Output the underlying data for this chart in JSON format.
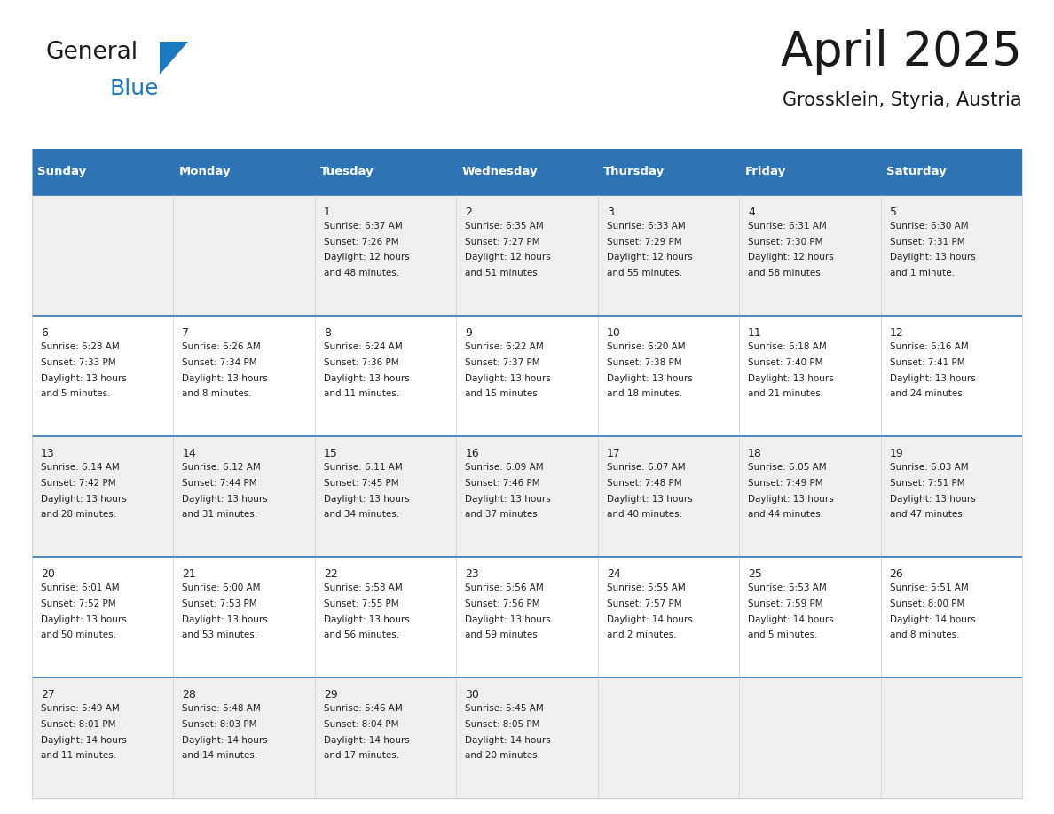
{
  "title": "April 2025",
  "subtitle": "Grossklein, Styria, Austria",
  "header_color": "#2E74B5",
  "header_text_color": "#FFFFFF",
  "cell_bg_even": "#EFEFEF",
  "cell_bg_odd": "#FFFFFF",
  "cell_text_color": "#222222",
  "separator_color": "#2E74B5",
  "days_of_week": [
    "Sunday",
    "Monday",
    "Tuesday",
    "Wednesday",
    "Thursday",
    "Friday",
    "Saturday"
  ],
  "weeks": [
    [
      {
        "day": "",
        "sunrise": "",
        "sunset": "",
        "daylight": ""
      },
      {
        "day": "",
        "sunrise": "",
        "sunset": "",
        "daylight": ""
      },
      {
        "day": "1",
        "sunrise": "6:37 AM",
        "sunset": "7:26 PM",
        "daylight_line1": "Daylight: 12 hours",
        "daylight_line2": "and 48 minutes."
      },
      {
        "day": "2",
        "sunrise": "6:35 AM",
        "sunset": "7:27 PM",
        "daylight_line1": "Daylight: 12 hours",
        "daylight_line2": "and 51 minutes."
      },
      {
        "day": "3",
        "sunrise": "6:33 AM",
        "sunset": "7:29 PM",
        "daylight_line1": "Daylight: 12 hours",
        "daylight_line2": "and 55 minutes."
      },
      {
        "day": "4",
        "sunrise": "6:31 AM",
        "sunset": "7:30 PM",
        "daylight_line1": "Daylight: 12 hours",
        "daylight_line2": "and 58 minutes."
      },
      {
        "day": "5",
        "sunrise": "6:30 AM",
        "sunset": "7:31 PM",
        "daylight_line1": "Daylight: 13 hours",
        "daylight_line2": "and 1 minute."
      }
    ],
    [
      {
        "day": "6",
        "sunrise": "6:28 AM",
        "sunset": "7:33 PM",
        "daylight_line1": "Daylight: 13 hours",
        "daylight_line2": "and 5 minutes."
      },
      {
        "day": "7",
        "sunrise": "6:26 AM",
        "sunset": "7:34 PM",
        "daylight_line1": "Daylight: 13 hours",
        "daylight_line2": "and 8 minutes."
      },
      {
        "day": "8",
        "sunrise": "6:24 AM",
        "sunset": "7:36 PM",
        "daylight_line1": "Daylight: 13 hours",
        "daylight_line2": "and 11 minutes."
      },
      {
        "day": "9",
        "sunrise": "6:22 AM",
        "sunset": "7:37 PM",
        "daylight_line1": "Daylight: 13 hours",
        "daylight_line2": "and 15 minutes."
      },
      {
        "day": "10",
        "sunrise": "6:20 AM",
        "sunset": "7:38 PM",
        "daylight_line1": "Daylight: 13 hours",
        "daylight_line2": "and 18 minutes."
      },
      {
        "day": "11",
        "sunrise": "6:18 AM",
        "sunset": "7:40 PM",
        "daylight_line1": "Daylight: 13 hours",
        "daylight_line2": "and 21 minutes."
      },
      {
        "day": "12",
        "sunrise": "6:16 AM",
        "sunset": "7:41 PM",
        "daylight_line1": "Daylight: 13 hours",
        "daylight_line2": "and 24 minutes."
      }
    ],
    [
      {
        "day": "13",
        "sunrise": "6:14 AM",
        "sunset": "7:42 PM",
        "daylight_line1": "Daylight: 13 hours",
        "daylight_line2": "and 28 minutes."
      },
      {
        "day": "14",
        "sunrise": "6:12 AM",
        "sunset": "7:44 PM",
        "daylight_line1": "Daylight: 13 hours",
        "daylight_line2": "and 31 minutes."
      },
      {
        "day": "15",
        "sunrise": "6:11 AM",
        "sunset": "7:45 PM",
        "daylight_line1": "Daylight: 13 hours",
        "daylight_line2": "and 34 minutes."
      },
      {
        "day": "16",
        "sunrise": "6:09 AM",
        "sunset": "7:46 PM",
        "daylight_line1": "Daylight: 13 hours",
        "daylight_line2": "and 37 minutes."
      },
      {
        "day": "17",
        "sunrise": "6:07 AM",
        "sunset": "7:48 PM",
        "daylight_line1": "Daylight: 13 hours",
        "daylight_line2": "and 40 minutes."
      },
      {
        "day": "18",
        "sunrise": "6:05 AM",
        "sunset": "7:49 PM",
        "daylight_line1": "Daylight: 13 hours",
        "daylight_line2": "and 44 minutes."
      },
      {
        "day": "19",
        "sunrise": "6:03 AM",
        "sunset": "7:51 PM",
        "daylight_line1": "Daylight: 13 hours",
        "daylight_line2": "and 47 minutes."
      }
    ],
    [
      {
        "day": "20",
        "sunrise": "6:01 AM",
        "sunset": "7:52 PM",
        "daylight_line1": "Daylight: 13 hours",
        "daylight_line2": "and 50 minutes."
      },
      {
        "day": "21",
        "sunrise": "6:00 AM",
        "sunset": "7:53 PM",
        "daylight_line1": "Daylight: 13 hours",
        "daylight_line2": "and 53 minutes."
      },
      {
        "day": "22",
        "sunrise": "5:58 AM",
        "sunset": "7:55 PM",
        "daylight_line1": "Daylight: 13 hours",
        "daylight_line2": "and 56 minutes."
      },
      {
        "day": "23",
        "sunrise": "5:56 AM",
        "sunset": "7:56 PM",
        "daylight_line1": "Daylight: 13 hours",
        "daylight_line2": "and 59 minutes."
      },
      {
        "day": "24",
        "sunrise": "5:55 AM",
        "sunset": "7:57 PM",
        "daylight_line1": "Daylight: 14 hours",
        "daylight_line2": "and 2 minutes."
      },
      {
        "day": "25",
        "sunrise": "5:53 AM",
        "sunset": "7:59 PM",
        "daylight_line1": "Daylight: 14 hours",
        "daylight_line2": "and 5 minutes."
      },
      {
        "day": "26",
        "sunrise": "5:51 AM",
        "sunset": "8:00 PM",
        "daylight_line1": "Daylight: 14 hours",
        "daylight_line2": "and 8 minutes."
      }
    ],
    [
      {
        "day": "27",
        "sunrise": "5:49 AM",
        "sunset": "8:01 PM",
        "daylight_line1": "Daylight: 14 hours",
        "daylight_line2": "and 11 minutes."
      },
      {
        "day": "28",
        "sunrise": "5:48 AM",
        "sunset": "8:03 PM",
        "daylight_line1": "Daylight: 14 hours",
        "daylight_line2": "and 14 minutes."
      },
      {
        "day": "29",
        "sunrise": "5:46 AM",
        "sunset": "8:04 PM",
        "daylight_line1": "Daylight: 14 hours",
        "daylight_line2": "and 17 minutes."
      },
      {
        "day": "30",
        "sunrise": "5:45 AM",
        "sunset": "8:05 PM",
        "daylight_line1": "Daylight: 14 hours",
        "daylight_line2": "and 20 minutes."
      },
      {
        "day": "",
        "sunrise": "",
        "sunset": "",
        "daylight_line1": "",
        "daylight_line2": ""
      },
      {
        "day": "",
        "sunrise": "",
        "sunset": "",
        "daylight_line1": "",
        "daylight_line2": ""
      },
      {
        "day": "",
        "sunrise": "",
        "sunset": "",
        "daylight_line1": "",
        "daylight_line2": ""
      }
    ]
  ],
  "logo_text_general": "General",
  "logo_text_blue": "Blue",
  "logo_color_general": "#1a1a1a",
  "logo_color_blue": "#1a7abf"
}
